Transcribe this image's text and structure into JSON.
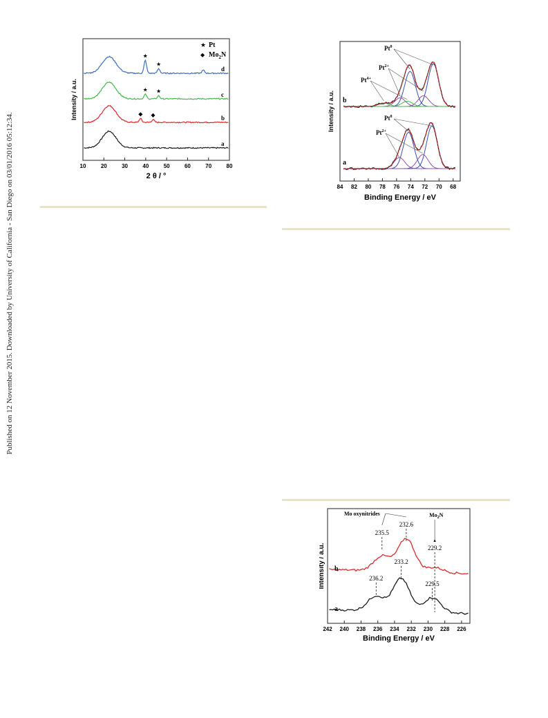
{
  "margin_note": "Published on 12 November 2015. Downloaded by University of California - San Diego on 03/01/2016 05:12:34.",
  "figures": [
    {
      "panel": "xrd",
      "chart_data": {
        "type": "line",
        "xlabel": "2 θ / °",
        "ylabel": "Intensity / a.u.",
        "x_ticks": [
          "10",
          "20",
          "30",
          "40",
          "50",
          "60",
          "70",
          "80"
        ],
        "xlim": [
          10,
          80
        ],
        "legend": [
          {
            "symbol": "★",
            "label": "Pt"
          },
          {
            "symbol": "◆",
            "label_main": "Mo",
            "label_sub": "2",
            "label_tail": "N"
          }
        ],
        "series": [
          {
            "name": "a",
            "color": "#1a1a1a",
            "peaks": [
              [
                22.5,
                1.0
              ]
            ]
          },
          {
            "name": "b",
            "color": "#e0262b",
            "peaks": [
              [
                22.5,
                1.0
              ],
              [
                37.5,
                0.25
              ],
              [
                43.5,
                0.18
              ]
            ]
          },
          {
            "name": "c",
            "color": "#43b94a",
            "peaks": [
              [
                22.5,
                1.0
              ],
              [
                39.8,
                0.3
              ],
              [
                46.2,
                0.2
              ]
            ]
          },
          {
            "name": "d",
            "color": "#3a6fc4",
            "peaks": [
              [
                22.5,
                1.0
              ],
              [
                39.8,
                0.85
              ],
              [
                46.2,
                0.3
              ],
              [
                67.5,
                0.2
              ]
            ]
          }
        ],
        "annotations": [
          {
            "series": "b",
            "x": 37.5,
            "symbol": "◆"
          },
          {
            "series": "b",
            "x": 43.5,
            "symbol": "◆"
          },
          {
            "series": "c",
            "x": 39.8,
            "symbol": "★"
          },
          {
            "series": "c",
            "x": 46.2,
            "symbol": "★"
          },
          {
            "series": "d",
            "x": 39.8,
            "symbol": "★"
          },
          {
            "series": "d",
            "x": 46.2,
            "symbol": "★"
          }
        ]
      }
    },
    {
      "panel": "xps-pt",
      "chart_data": {
        "type": "line",
        "xlabel": "Binding Energy / eV",
        "ylabel": "Intensity / a.u.",
        "x_ticks": [
          "84",
          "82",
          "80",
          "78",
          "76",
          "74",
          "72",
          "70",
          "68"
        ],
        "xlim": [
          84,
          67
        ],
        "series": [
          {
            "name": "a",
            "color": "#1a1a1a",
            "components": [
              {
                "center": 71.0,
                "height": 1.0,
                "color": "#3a4fb0"
              },
              {
                "center": 74.3,
                "height": 0.85,
                "color": "#3a4fb0"
              },
              {
                "center": 72.3,
                "height": 0.33,
                "color": "#8e4fb0"
              },
              {
                "center": 75.6,
                "height": 0.26,
                "color": "#8e4fb0"
              }
            ]
          },
          {
            "name": "b",
            "color": "#1a1a1a",
            "components": [
              {
                "center": 70.8,
                "height": 1.0,
                "color": "#3a4fb0"
              },
              {
                "center": 74.1,
                "height": 0.82,
                "color": "#3a4fb0"
              },
              {
                "center": 72.2,
                "height": 0.25,
                "color": "#8e4fb0"
              },
              {
                "center": 75.5,
                "height": 0.2,
                "color": "#8e4fb0"
              },
              {
                "center": 74.5,
                "height": 0.12,
                "color": "#43b94a"
              },
              {
                "center": 77.8,
                "height": 0.08,
                "color": "#43b94a"
              }
            ]
          }
        ],
        "fit_color": "#d63030",
        "labels": [
          {
            "text": "Pt",
            "sup": "0",
            "series": "b"
          },
          {
            "text": "Pt",
            "sup": "2+",
            "series": "b"
          },
          {
            "text": "Pt",
            "sup": "4+",
            "series": "b"
          },
          {
            "text": "Pt",
            "sup": "0",
            "series": "a"
          },
          {
            "text": "Pt",
            "sup": "2+",
            "series": "a"
          }
        ]
      }
    },
    {
      "panel": "xps-mo",
      "chart_data": {
        "type": "line",
        "xlabel": "Binding Energy / eV",
        "ylabel": "Intensity / a.u.",
        "x_ticks": [
          "242",
          "240",
          "238",
          "236",
          "234",
          "232",
          "230",
          "228",
          "226"
        ],
        "xlim": [
          242,
          225
        ],
        "series": [
          {
            "name": "a",
            "color": "#1a1a1a",
            "peaks": [
              [
                236.2,
                0.45
              ],
              [
                233.2,
                1.0
              ],
              [
                229.5,
                0.45
              ]
            ]
          },
          {
            "name": "b",
            "color": "#e0262b",
            "peaks": [
              [
                235.5,
                0.45
              ],
              [
                232.6,
                1.0
              ],
              [
                229.2,
                0.15
              ]
            ]
          }
        ],
        "peak_labels": [
          {
            "series": "b",
            "value": "235.5",
            "x": 235.5
          },
          {
            "series": "b",
            "value": "232.6",
            "x": 232.6
          },
          {
            "series": "b",
            "value": "229.2",
            "x": 229.2
          },
          {
            "series": "a",
            "value": "236.2",
            "x": 236.2
          },
          {
            "series": "a",
            "value": "233.2",
            "x": 233.2
          },
          {
            "series": "a",
            "value": "229.5",
            "x": 229.5
          }
        ],
        "group_labels": {
          "oxynitrides": "Mo oxynitrides",
          "nitride_main": "Mo",
          "nitride_sub": "2",
          "nitride_tail": "N"
        }
      }
    }
  ]
}
